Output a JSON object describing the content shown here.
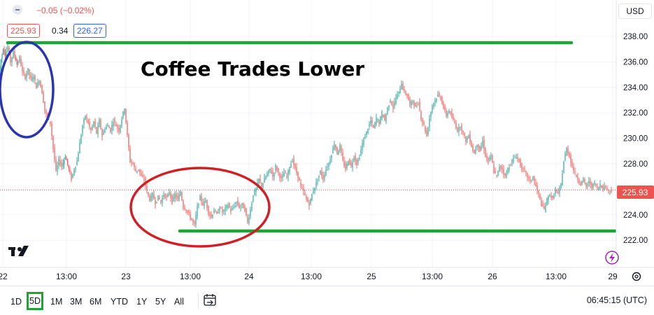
{
  "header": {
    "change_text": "−0.05 (−0.02%)",
    "bid_price": "225.93",
    "spread": "0.34",
    "ask_price": "226.27"
  },
  "currency_button": "USD",
  "annotation_title": "Coffee Trades Lower",
  "price_label": "225.93",
  "time_ranges": [
    {
      "label": "1D",
      "active": false
    },
    {
      "label": "5D",
      "active": true
    },
    {
      "label": "1M",
      "active": false
    },
    {
      "label": "3M",
      "active": false
    },
    {
      "label": "6M",
      "active": false
    },
    {
      "label": "YTD",
      "active": false
    },
    {
      "label": "1Y",
      "active": false
    },
    {
      "label": "5Y",
      "active": false
    },
    {
      "label": "All",
      "active": false
    }
  ],
  "clock": "06:45:15 (UTC)",
  "colors": {
    "up": "#26a69a",
    "down": "#ef5350",
    "green_line": "#22a33a",
    "blue_circle": "#2b35b0",
    "red_circle": "#d11f26",
    "price_label_bg": "#ef5350",
    "grid": "#f0f3fa",
    "last_price_line": "#ef5350"
  },
  "chart_data": {
    "type": "candlestick",
    "title": "",
    "xlabel": "",
    "ylabel": "",
    "ylim": [
      221.0,
      239.0
    ],
    "y_ticks": [
      222.0,
      224.0,
      226.0,
      228.0,
      230.0,
      232.0,
      234.0,
      236.0,
      238.0
    ],
    "y_tick_labels": [
      "222.00",
      "224.00",
      "226.00",
      "228.00",
      "230.00",
      "232.00",
      "234.00",
      "236.00",
      "238.00"
    ],
    "x_ticks": [
      "22",
      "13:00",
      "23",
      "13:00",
      "24",
      "13:00",
      "25",
      "13:00",
      "26",
      "13:00",
      "29"
    ],
    "last_price": 225.93,
    "grid": true,
    "price_path": [
      [
        0,
        235.0
      ],
      [
        3,
        236.2
      ],
      [
        6,
        237.0
      ],
      [
        9,
        236.5
      ],
      [
        13,
        237.2
      ],
      [
        17,
        236.0
      ],
      [
        21,
        236.8
      ],
      [
        26,
        235.8
      ],
      [
        30,
        236.3
      ],
      [
        34,
        235.2
      ],
      [
        38,
        234.8
      ],
      [
        42,
        235.4
      ],
      [
        46,
        234.6
      ],
      [
        50,
        234.9
      ],
      [
        54,
        234.0
      ],
      [
        58,
        234.6
      ],
      [
        62,
        233.6
      ],
      [
        66,
        232.2
      ],
      [
        70,
        231.6
      ],
      [
        74,
        231.2
      ],
      [
        78,
        229.2
      ],
      [
        82,
        227.4
      ],
      [
        86,
        228.3
      ],
      [
        90,
        227.8
      ],
      [
        95,
        228.6
      ],
      [
        100,
        227.6
      ],
      [
        104,
        226.8
      ],
      [
        108,
        227.6
      ],
      [
        112,
        228.2
      ],
      [
        116,
        229.6
      ],
      [
        120,
        231.0
      ],
      [
        124,
        231.8
      ],
      [
        128,
        231.2
      ],
      [
        132,
        230.6
      ],
      [
        136,
        231.3
      ],
      [
        140,
        230.4
      ],
      [
        144,
        231.4
      ],
      [
        148,
        230.2
      ],
      [
        152,
        230.8
      ],
      [
        156,
        231.0
      ],
      [
        160,
        230.6
      ],
      [
        164,
        231.4
      ],
      [
        168,
        231.0
      ],
      [
        172,
        230.6
      ],
      [
        176,
        231.6
      ],
      [
        180,
        232.4
      ],
      [
        184,
        230.2
      ],
      [
        188,
        228.2
      ],
      [
        192,
        228.0
      ],
      [
        196,
        227.4
      ],
      [
        200,
        227.6
      ],
      [
        204,
        227.0
      ],
      [
        208,
        226.8
      ],
      [
        212,
        225.8
      ],
      [
        216,
        225.2
      ],
      [
        220,
        225.6
      ],
      [
        224,
        224.9
      ],
      [
        228,
        225.4
      ],
      [
        232,
        225.0
      ],
      [
        236,
        225.6
      ],
      [
        240,
        225.3
      ],
      [
        244,
        225.8
      ],
      [
        248,
        225.0
      ],
      [
        252,
        225.6
      ],
      [
        256,
        225.2
      ],
      [
        260,
        225.8
      ],
      [
        264,
        224.6
      ],
      [
        268,
        224.4
      ],
      [
        272,
        224.0
      ],
      [
        276,
        223.6
      ],
      [
        280,
        223.2
      ],
      [
        284,
        224.6
      ],
      [
        288,
        225.4
      ],
      [
        292,
        224.8
      ],
      [
        296,
        225.1
      ],
      [
        300,
        224.2
      ],
      [
        304,
        223.8
      ],
      [
        308,
        224.4
      ],
      [
        312,
        224.0
      ],
      [
        316,
        224.6
      ],
      [
        320,
        224.2
      ],
      [
        324,
        224.5
      ],
      [
        328,
        224.8
      ],
      [
        332,
        224.3
      ],
      [
        336,
        224.6
      ],
      [
        340,
        225.0
      ],
      [
        344,
        224.6
      ],
      [
        348,
        224.8
      ],
      [
        352,
        224.4
      ],
      [
        356,
        223.4
      ],
      [
        360,
        224.4
      ],
      [
        364,
        225.6
      ],
      [
        368,
        226.0
      ],
      [
        372,
        226.8
      ],
      [
        376,
        226.2
      ],
      [
        380,
        226.8
      ],
      [
        384,
        227.2
      ],
      [
        388,
        227.6
      ],
      [
        392,
        227.0
      ],
      [
        396,
        227.8
      ],
      [
        400,
        227.3
      ],
      [
        404,
        226.8
      ],
      [
        408,
        227.3
      ],
      [
        412,
        227.0
      ],
      [
        416,
        227.8
      ],
      [
        420,
        228.3
      ],
      [
        424,
        227.6
      ],
      [
        428,
        227.0
      ],
      [
        432,
        226.2
      ],
      [
        436,
        225.8
      ],
      [
        440,
        225.2
      ],
      [
        444,
        224.8
      ],
      [
        448,
        225.6
      ],
      [
        452,
        226.2
      ],
      [
        456,
        226.8
      ],
      [
        460,
        227.4
      ],
      [
        464,
        226.8
      ],
      [
        468,
        227.6
      ],
      [
        472,
        228.0
      ],
      [
        476,
        228.8
      ],
      [
        480,
        229.6
      ],
      [
        484,
        228.8
      ],
      [
        488,
        229.4
      ],
      [
        492,
        228.2
      ],
      [
        496,
        227.6
      ],
      [
        500,
        228.3
      ],
      [
        504,
        227.8
      ],
      [
        508,
        228.6
      ],
      [
        512,
        228.0
      ],
      [
        516,
        228.6
      ],
      [
        520,
        229.6
      ],
      [
        524,
        230.2
      ],
      [
        528,
        230.8
      ],
      [
        532,
        231.4
      ],
      [
        536,
        230.8
      ],
      [
        540,
        231.6
      ],
      [
        544,
        231.2
      ],
      [
        548,
        232.0
      ],
      [
        552,
        231.4
      ],
      [
        556,
        232.4
      ],
      [
        560,
        233.0
      ],
      [
        564,
        232.4
      ],
      [
        568,
        233.2
      ],
      [
        572,
        233.6
      ],
      [
        576,
        234.3
      ],
      [
        580,
        233.6
      ],
      [
        584,
        233.4
      ],
      [
        588,
        232.6
      ],
      [
        592,
        233.0
      ],
      [
        596,
        232.4
      ],
      [
        600,
        232.8
      ],
      [
        604,
        231.6
      ],
      [
        608,
        231.0
      ],
      [
        612,
        230.2
      ],
      [
        616,
        231.6
      ],
      [
        620,
        232.6
      ],
      [
        624,
        233.0
      ],
      [
        628,
        233.4
      ],
      [
        632,
        233.2
      ],
      [
        636,
        232.4
      ],
      [
        640,
        231.8
      ],
      [
        644,
        232.2
      ],
      [
        648,
        231.6
      ],
      [
        652,
        231.2
      ],
      [
        656,
        230.6
      ],
      [
        660,
        231.0
      ],
      [
        664,
        230.4
      ],
      [
        668,
        229.8
      ],
      [
        672,
        230.2
      ],
      [
        676,
        229.4
      ],
      [
        680,
        228.8
      ],
      [
        684,
        229.6
      ],
      [
        688,
        229.0
      ],
      [
        692,
        229.8
      ],
      [
        696,
        228.6
      ],
      [
        700,
        228.2
      ],
      [
        704,
        228.6
      ],
      [
        708,
        227.4
      ],
      [
        712,
        227.0
      ],
      [
        716,
        227.8
      ],
      [
        720,
        227.6
      ],
      [
        724,
        227.0
      ],
      [
        728,
        227.6
      ],
      [
        732,
        228.0
      ],
      [
        736,
        228.4
      ],
      [
        740,
        228.6
      ],
      [
        744,
        228.2
      ],
      [
        748,
        227.6
      ],
      [
        752,
        227.4
      ],
      [
        756,
        227.0
      ],
      [
        760,
        226.6
      ],
      [
        764,
        227.0
      ],
      [
        768,
        226.2
      ],
      [
        772,
        225.6
      ],
      [
        776,
        224.8
      ],
      [
        780,
        224.4
      ],
      [
        784,
        225.2
      ],
      [
        788,
        225.6
      ],
      [
        792,
        225.2
      ],
      [
        796,
        226.0
      ],
      [
        800,
        225.6
      ],
      [
        804,
        226.4
      ],
      [
        808,
        228.2
      ],
      [
        812,
        229.2
      ],
      [
        816,
        228.6
      ],
      [
        820,
        227.8
      ],
      [
        824,
        227.2
      ],
      [
        828,
        226.8
      ],
      [
        832,
        226.4
      ],
      [
        836,
        226.8
      ],
      [
        840,
        226.2
      ],
      [
        844,
        226.6
      ],
      [
        848,
        226.2
      ],
      [
        852,
        226.5
      ],
      [
        856,
        226.0
      ],
      [
        860,
        226.4
      ],
      [
        864,
        226.1
      ],
      [
        868,
        226.2
      ],
      [
        872,
        225.9
      ],
      [
        876,
        225.93
      ]
    ]
  }
}
